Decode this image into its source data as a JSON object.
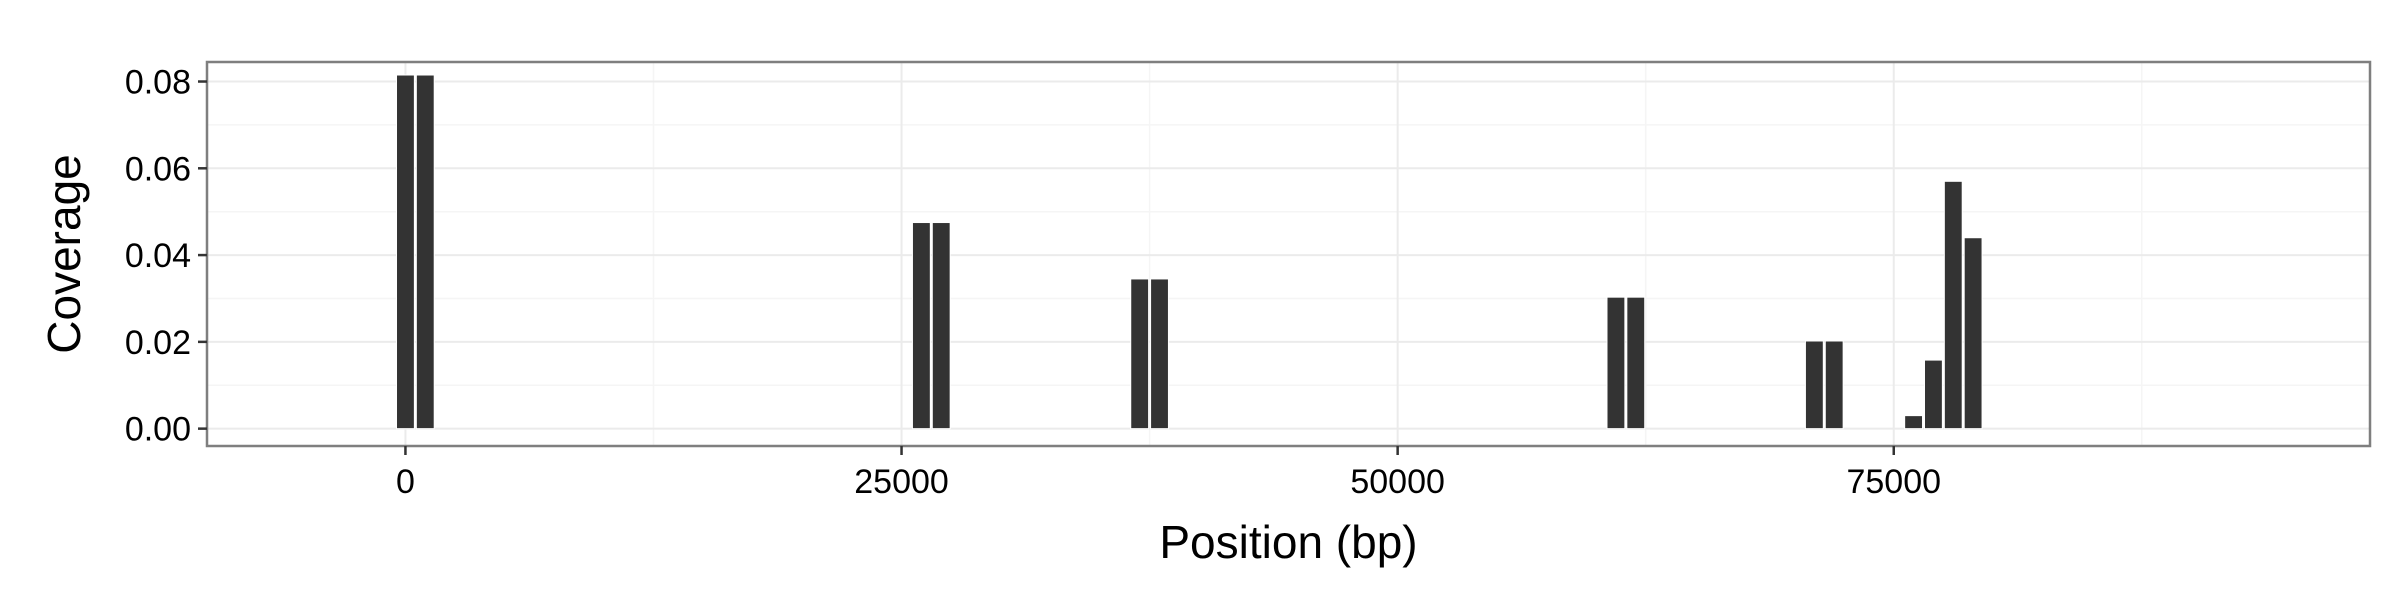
{
  "chart_data": {
    "type": "bar",
    "xlabel": "Position (bp)",
    "ylabel": "Coverage",
    "xlim": [
      -10000,
      99000
    ],
    "ylim": [
      -0.004,
      0.0845
    ],
    "x_ticks": [
      0,
      25000,
      50000,
      75000
    ],
    "x_tick_labels": [
      "0",
      "25000",
      "50000",
      "75000"
    ],
    "y_ticks": [
      0,
      0.02,
      0.04,
      0.06,
      0.08
    ],
    "y_tick_labels": [
      "0.00",
      "0.02",
      "0.04",
      "0.06",
      "0.08"
    ],
    "bar_width": 900,
    "bars": [
      {
        "x": 0,
        "y": 0.0815
      },
      {
        "x": 1000,
        "y": 0.0815
      },
      {
        "x": 26000,
        "y": 0.0475
      },
      {
        "x": 27000,
        "y": 0.0475
      },
      {
        "x": 37000,
        "y": 0.0345
      },
      {
        "x": 38000,
        "y": 0.0345
      },
      {
        "x": 61000,
        "y": 0.0303
      },
      {
        "x": 62000,
        "y": 0.0303
      },
      {
        "x": 71000,
        "y": 0.0202
      },
      {
        "x": 72000,
        "y": 0.0202
      },
      {
        "x": 76000,
        "y": 0.003
      },
      {
        "x": 77000,
        "y": 0.0158
      },
      {
        "x": 78000,
        "y": 0.057
      },
      {
        "x": 79000,
        "y": 0.044
      }
    ],
    "grid": true,
    "legend": "none",
    "colors": {
      "bar": "#333333",
      "bar_edge": "#ffffff",
      "panel_background": "#ffffff",
      "panel_border": "#7f7f7f",
      "grid_major": "#ebebeb",
      "grid_minor": "#f5f5f5"
    }
  }
}
